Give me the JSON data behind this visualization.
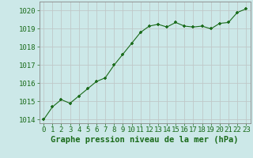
{
  "x": [
    0,
    1,
    2,
    3,
    4,
    5,
    6,
    7,
    8,
    9,
    10,
    11,
    12,
    13,
    14,
    15,
    16,
    17,
    18,
    19,
    20,
    21,
    22,
    23
  ],
  "y": [
    1014.0,
    1014.7,
    1015.1,
    1014.9,
    1015.3,
    1015.7,
    1016.1,
    1016.3,
    1017.0,
    1017.6,
    1018.2,
    1018.8,
    1019.15,
    1019.25,
    1019.1,
    1019.35,
    1019.15,
    1019.1,
    1019.15,
    1019.0,
    1019.3,
    1019.35,
    1019.9,
    1020.1
  ],
  "ylim": [
    1013.8,
    1020.5
  ],
  "xlim": [
    -0.5,
    23.5
  ],
  "yticks": [
    1014,
    1015,
    1016,
    1017,
    1018,
    1019,
    1020
  ],
  "xticks": [
    0,
    1,
    2,
    3,
    4,
    5,
    6,
    7,
    8,
    9,
    10,
    11,
    12,
    13,
    14,
    15,
    16,
    17,
    18,
    19,
    20,
    21,
    22,
    23
  ],
  "line_color": "#1a6b1a",
  "marker_color": "#1a6b1a",
  "bg_color": "#cce8e8",
  "grid_color": "#b8d8d8",
  "xlabel": "Graphe pression niveau de la mer (hPa)",
  "xlabel_color": "#1a6b1a",
  "tick_color": "#1a6b1a",
  "spine_color": "#888888",
  "label_fontsize": 6.5,
  "xlabel_fontsize": 7.5
}
